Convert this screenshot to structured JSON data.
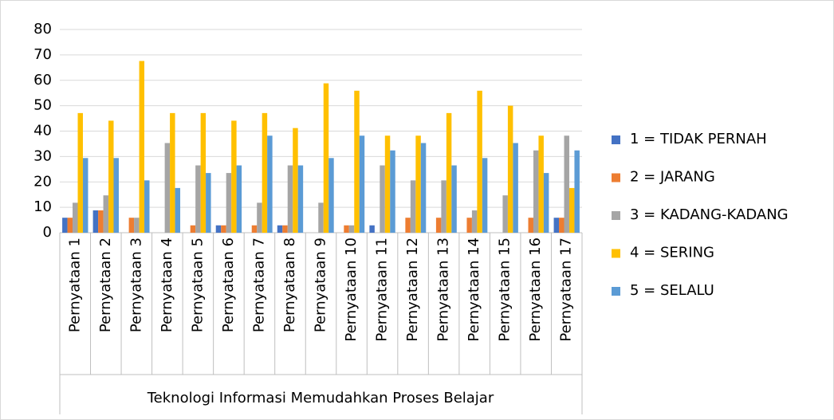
{
  "chart_data": {
    "type": "bar",
    "x_label": "Teknologi Informasi Memudahkan Proses Belajar",
    "categories": [
      "Pernyataan 1",
      "Pernyataan 2",
      "Pernyataan 3",
      "Pernyataan 4",
      "Pernyataan 5",
      "Pernyataan 6",
      "Pernyataan 7",
      "Pernyataan 8",
      "Pernyataan 9",
      "Pernyataan 10",
      "Pernyataan 11",
      "Pernyataan 12",
      "Pernyataan 13",
      "Pernyataan 14",
      "Pernyataan 15",
      "Pernyataan 16",
      "Pernyataan 17"
    ],
    "series": [
      {
        "name": "1 = TIDAK PERNAH",
        "color": "#4472c4",
        "values": [
          5.9,
          8.8,
          0,
          0,
          0,
          2.9,
          0,
          2.9,
          0,
          0,
          2.9,
          0,
          0,
          0,
          0,
          0,
          5.9
        ]
      },
      {
        "name": "2 = JARANG",
        "color": "#ed7d31",
        "values": [
          5.9,
          8.8,
          5.9,
          0,
          2.9,
          2.9,
          2.9,
          2.9,
          0,
          2.9,
          0,
          5.9,
          5.9,
          5.9,
          0,
          5.9,
          5.9
        ]
      },
      {
        "name": "3 = KADANG-KADANG",
        "color": "#a5a5a5",
        "values": [
          11.8,
          14.7,
          5.9,
          35.3,
          26.5,
          23.5,
          11.8,
          26.5,
          11.8,
          2.9,
          26.5,
          20.6,
          20.6,
          8.8,
          14.7,
          32.4,
          38.2
        ]
      },
      {
        "name": "4 = SERING",
        "color": "#ffc000",
        "values": [
          47.1,
          44.1,
          67.6,
          47.1,
          47.1,
          44.1,
          47.1,
          41.2,
          58.8,
          55.9,
          38.2,
          38.2,
          47.1,
          55.9,
          50,
          38.2,
          17.6
        ]
      },
      {
        "name": "5 = SELALU",
        "color": "#5b9bd5",
        "values": [
          29.4,
          29.4,
          20.6,
          17.6,
          23.5,
          26.5,
          38.2,
          26.5,
          29.4,
          38.2,
          32.4,
          35.3,
          26.5,
          29.4,
          35.3,
          23.5,
          32.4
        ]
      }
    ],
    "ylim": [
      0,
      80
    ],
    "yticks": [
      0,
      10,
      20,
      30,
      40,
      50,
      60,
      70,
      80
    ],
    "grid": true,
    "legend": "right"
  }
}
